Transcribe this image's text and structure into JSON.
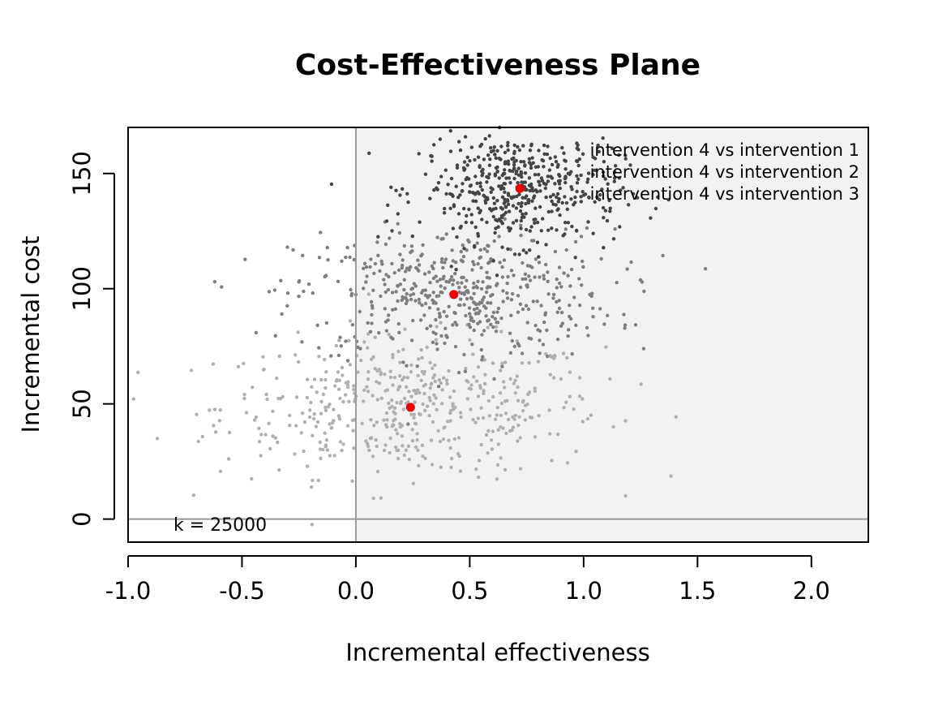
{
  "chart_data": {
    "type": "scatter",
    "title": "Cost-Effectiveness Plane",
    "xlabel": "Incremental effectiveness",
    "ylabel": "Incremental cost",
    "xlim": [
      -1.0,
      2.25
    ],
    "ylim": [
      -10,
      170
    ],
    "x_ticks": [
      -1.0,
      -0.5,
      0.0,
      0.5,
      1.0,
      1.5,
      2.0
    ],
    "x_tick_labels": [
      "-1.0",
      "-0.5",
      "0.0",
      "0.5",
      "1.0",
      "1.5",
      "2.0"
    ],
    "y_ticks": [
      0,
      50,
      100,
      150
    ],
    "y_tick_labels": [
      "0",
      "50",
      "100",
      "150"
    ],
    "wtp_label": "k = 25000",
    "wtp": 25000,
    "legend_position": "top-right",
    "colors": {
      "acceptability_region": "#f2f2f2",
      "axis_lines": "#999999",
      "mean_point": "#ee0000"
    },
    "series": [
      {
        "name": "intervention 4 vs intervention 1",
        "color": "#444444",
        "mean": {
          "x": 0.72,
          "y": 143.5
        },
        "sd": {
          "x": 0.22,
          "y": 12
        },
        "n": 500
      },
      {
        "name": "intervention 4 vs intervention 2",
        "color": "#7f7f7f",
        "mean": {
          "x": 0.43,
          "y": 97.5
        },
        "sd": {
          "x": 0.35,
          "y": 14
        },
        "n": 500
      },
      {
        "name": "intervention 4 vs intervention 3",
        "color": "#b0b0b0",
        "mean": {
          "x": 0.24,
          "y": 48.5
        },
        "sd": {
          "x": 0.42,
          "y": 15
        },
        "n": 500
      }
    ]
  }
}
